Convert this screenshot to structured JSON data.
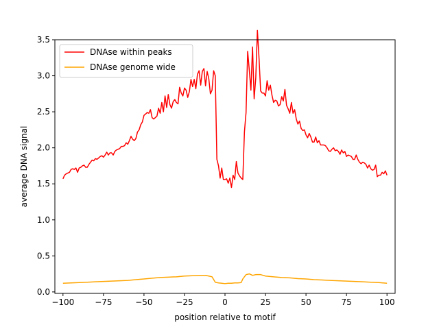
{
  "chart_data": {
    "type": "line",
    "title": "",
    "xlabel": "position relative to motif",
    "ylabel": "average DNA signal",
    "xlim": [
      -105,
      105
    ],
    "ylim": [
      -0.02,
      3.5
    ],
    "xticks": [
      -100,
      -75,
      -50,
      -25,
      0,
      25,
      50,
      75,
      100
    ],
    "yticks": [
      0.0,
      0.5,
      1.0,
      1.5,
      2.0,
      2.5,
      3.0,
      3.5
    ],
    "xtick_labels": [
      "−100",
      "−75",
      "−50",
      "−25",
      "0",
      "25",
      "50",
      "75",
      "100"
    ],
    "ytick_labels": [
      "0.0",
      "0.5",
      "1.0",
      "1.5",
      "2.0",
      "2.5",
      "3.0",
      "3.5"
    ],
    "grid": false,
    "legend_position": "upper-left",
    "series": [
      {
        "name": "DNAse within peaks",
        "color": "#ff0000",
        "points": [
          [
            -100,
            1.57
          ],
          [
            -99,
            1.62
          ],
          [
            -98,
            1.64
          ],
          [
            -97,
            1.65
          ],
          [
            -96,
            1.66
          ],
          [
            -95,
            1.7
          ],
          [
            -94,
            1.71
          ],
          [
            -93,
            1.7
          ],
          [
            -92,
            1.72
          ],
          [
            -91,
            1.66
          ],
          [
            -90,
            1.72
          ],
          [
            -89,
            1.73
          ],
          [
            -88,
            1.75
          ],
          [
            -87,
            1.76
          ],
          [
            -86,
            1.73
          ],
          [
            -85,
            1.73
          ],
          [
            -84,
            1.77
          ],
          [
            -83,
            1.8
          ],
          [
            -82,
            1.83
          ],
          [
            -81,
            1.82
          ],
          [
            -80,
            1.85
          ],
          [
            -79,
            1.84
          ],
          [
            -78,
            1.86
          ],
          [
            -77,
            1.88
          ],
          [
            -76,
            1.89
          ],
          [
            -75,
            1.87
          ],
          [
            -74,
            1.9
          ],
          [
            -73,
            1.94
          ],
          [
            -72,
            1.9
          ],
          [
            -71,
            1.93
          ],
          [
            -70,
            1.93
          ],
          [
            -69,
            1.9
          ],
          [
            -68,
            1.95
          ],
          [
            -67,
            1.97
          ],
          [
            -66,
            1.98
          ],
          [
            -65,
            1.99
          ],
          [
            -64,
            2.02
          ],
          [
            -63,
            2.02
          ],
          [
            -62,
            2.03
          ],
          [
            -61,
            2.07
          ],
          [
            -60,
            2.05
          ],
          [
            -59,
            2.1
          ],
          [
            -58,
            2.16
          ],
          [
            -57,
            2.12
          ],
          [
            -56,
            2.1
          ],
          [
            -55,
            2.13
          ],
          [
            -54,
            2.22
          ],
          [
            -53,
            2.25
          ],
          [
            -52,
            2.32
          ],
          [
            -51,
            2.36
          ],
          [
            -50,
            2.45
          ],
          [
            -49,
            2.47
          ],
          [
            -48,
            2.49
          ],
          [
            -47,
            2.48
          ],
          [
            -46,
            2.53
          ],
          [
            -45,
            2.42
          ],
          [
            -44,
            2.4
          ],
          [
            -43,
            2.42
          ],
          [
            -42,
            2.44
          ],
          [
            -41,
            2.55
          ],
          [
            -40,
            2.48
          ],
          [
            -39,
            2.63
          ],
          [
            -38,
            2.5
          ],
          [
            -37,
            2.72
          ],
          [
            -36,
            2.56
          ],
          [
            -35,
            2.74
          ],
          [
            -34,
            2.6
          ],
          [
            -33,
            2.55
          ],
          [
            -32,
            2.64
          ],
          [
            -31,
            2.67
          ],
          [
            -30,
            2.63
          ],
          [
            -29,
            2.61
          ],
          [
            -28,
            2.84
          ],
          [
            -27,
            2.76
          ],
          [
            -26,
            2.72
          ],
          [
            -25,
            2.83
          ],
          [
            -24,
            2.8
          ],
          [
            -23,
            2.7
          ],
          [
            -22,
            2.78
          ],
          [
            -21,
            2.95
          ],
          [
            -20,
            2.85
          ],
          [
            -19,
            2.95
          ],
          [
            -18,
            2.82
          ],
          [
            -17,
            3.02
          ],
          [
            -16,
            3.07
          ],
          [
            -15,
            2.87
          ],
          [
            -14,
            3.06
          ],
          [
            -13,
            3.1
          ],
          [
            -12,
            2.86
          ],
          [
            -11,
            3.06
          ],
          [
            -10,
            2.96
          ],
          [
            -9,
            2.75
          ],
          [
            -8,
            2.8
          ],
          [
            -7,
            3.07
          ],
          [
            -6,
            3.0
          ],
          [
            -5,
            1.84
          ],
          [
            -4,
            1.75
          ],
          [
            -3,
            1.58
          ],
          [
            -2,
            1.72
          ],
          [
            -1,
            1.56
          ],
          [
            0,
            1.56
          ],
          [
            1,
            1.57
          ],
          [
            2,
            1.51
          ],
          [
            3,
            1.58
          ],
          [
            4,
            1.45
          ],
          [
            5,
            1.62
          ],
          [
            6,
            1.56
          ],
          [
            7,
            1.81
          ],
          [
            8,
            1.65
          ],
          [
            9,
            1.61
          ],
          [
            10,
            1.58
          ],
          [
            11,
            1.56
          ],
          [
            12,
            2.22
          ],
          [
            13,
            2.49
          ],
          [
            14,
            3.34
          ],
          [
            15,
            3.08
          ],
          [
            16,
            2.8
          ],
          [
            17,
            3.4
          ],
          [
            18,
            2.68
          ],
          [
            19,
            2.97
          ],
          [
            20,
            3.63
          ],
          [
            21,
            3.25
          ],
          [
            22,
            2.79
          ],
          [
            23,
            2.76
          ],
          [
            24,
            2.76
          ],
          [
            25,
            2.72
          ],
          [
            26,
            2.93
          ],
          [
            27,
            2.8
          ],
          [
            28,
            2.87
          ],
          [
            29,
            2.73
          ],
          [
            30,
            2.63
          ],
          [
            31,
            2.66
          ],
          [
            32,
            2.65
          ],
          [
            33,
            2.58
          ],
          [
            34,
            2.6
          ],
          [
            35,
            2.71
          ],
          [
            36,
            2.65
          ],
          [
            37,
            2.81
          ],
          [
            38,
            2.59
          ],
          [
            39,
            2.54
          ],
          [
            40,
            2.48
          ],
          [
            41,
            2.63
          ],
          [
            42,
            2.48
          ],
          [
            43,
            2.53
          ],
          [
            44,
            2.4
          ],
          [
            45,
            2.33
          ],
          [
            46,
            2.37
          ],
          [
            47,
            2.27
          ],
          [
            48,
            2.24
          ],
          [
            49,
            2.25
          ],
          [
            50,
            2.18
          ],
          [
            51,
            2.14
          ],
          [
            52,
            2.2
          ],
          [
            53,
            2.15
          ],
          [
            54,
            2.08
          ],
          [
            55,
            2.08
          ],
          [
            56,
            2.15
          ],
          [
            57,
            2.07
          ],
          [
            58,
            2.1
          ],
          [
            59,
            2.04
          ],
          [
            60,
            2.04
          ],
          [
            61,
            2.04
          ],
          [
            62,
            2.03
          ],
          [
            63,
            2.0
          ],
          [
            64,
            1.96
          ],
          [
            65,
            1.95
          ],
          [
            66,
            1.98
          ],
          [
            67,
            2.0
          ],
          [
            68,
            1.96
          ],
          [
            69,
            1.97
          ],
          [
            70,
            1.95
          ],
          [
            71,
            1.91
          ],
          [
            72,
            1.97
          ],
          [
            73,
            1.93
          ],
          [
            74,
            1.95
          ],
          [
            75,
            1.88
          ],
          [
            76,
            1.9
          ],
          [
            77,
            1.89
          ],
          [
            78,
            1.88
          ],
          [
            79,
            1.84
          ],
          [
            80,
            1.84
          ],
          [
            81,
            1.9
          ],
          [
            82,
            1.84
          ],
          [
            83,
            1.8
          ],
          [
            84,
            1.78
          ],
          [
            85,
            1.8
          ],
          [
            86,
            1.79
          ],
          [
            87,
            1.77
          ],
          [
            88,
            1.72
          ],
          [
            89,
            1.76
          ],
          [
            90,
            1.71
          ],
          [
            91,
            1.69
          ],
          [
            92,
            1.7
          ],
          [
            93,
            1.76
          ],
          [
            94,
            1.6
          ],
          [
            95,
            1.62
          ],
          [
            96,
            1.62
          ],
          [
            97,
            1.66
          ],
          [
            98,
            1.64
          ],
          [
            99,
            1.68
          ],
          [
            100,
            1.62
          ]
        ]
      },
      {
        "name": "DNAse genome wide",
        "color": "#ffa500",
        "points": [
          [
            -100,
            0.12
          ],
          [
            -95,
            0.125
          ],
          [
            -90,
            0.13
          ],
          [
            -85,
            0.135
          ],
          [
            -80,
            0.14
          ],
          [
            -75,
            0.145
          ],
          [
            -70,
            0.15
          ],
          [
            -65,
            0.155
          ],
          [
            -60,
            0.16
          ],
          [
            -55,
            0.17
          ],
          [
            -50,
            0.18
          ],
          [
            -45,
            0.19
          ],
          [
            -40,
            0.2
          ],
          [
            -35,
            0.205
          ],
          [
            -30,
            0.21
          ],
          [
            -25,
            0.22
          ],
          [
            -20,
            0.225
          ],
          [
            -15,
            0.23
          ],
          [
            -12,
            0.23
          ],
          [
            -10,
            0.22
          ],
          [
            -8,
            0.21
          ],
          [
            -6,
            0.135
          ],
          [
            -4,
            0.125
          ],
          [
            -2,
            0.12
          ],
          [
            0,
            0.115
          ],
          [
            2,
            0.12
          ],
          [
            4,
            0.12
          ],
          [
            6,
            0.125
          ],
          [
            8,
            0.125
          ],
          [
            10,
            0.13
          ],
          [
            11,
            0.18
          ],
          [
            13,
            0.24
          ],
          [
            15,
            0.25
          ],
          [
            17,
            0.23
          ],
          [
            19,
            0.24
          ],
          [
            22,
            0.24
          ],
          [
            25,
            0.22
          ],
          [
            30,
            0.21
          ],
          [
            35,
            0.2
          ],
          [
            40,
            0.195
          ],
          [
            45,
            0.185
          ],
          [
            50,
            0.18
          ],
          [
            55,
            0.17
          ],
          [
            60,
            0.165
          ],
          [
            65,
            0.16
          ],
          [
            70,
            0.155
          ],
          [
            75,
            0.15
          ],
          [
            80,
            0.145
          ],
          [
            85,
            0.14
          ],
          [
            90,
            0.135
          ],
          [
            95,
            0.13
          ],
          [
            100,
            0.12
          ]
        ]
      }
    ]
  }
}
